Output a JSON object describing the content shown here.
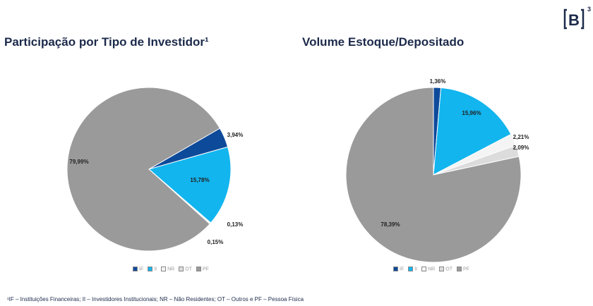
{
  "logo_text": "B3",
  "footnote": "¹IF – Instituições Financeiras; II – Investidores Institucionais; NR – Não Residentes; OT – Outros e PF – Pessoa Física",
  "chart_data": [
    {
      "type": "pie",
      "title": "Participação por Tipo de Investidor¹",
      "categories": [
        "IF",
        "II",
        "NR",
        "OT",
        "PF"
      ],
      "values": [
        3.94,
        15.78,
        0.13,
        0.15,
        79.99
      ],
      "labels": [
        "3,94%",
        "15,78%",
        "0,13%",
        "0,15%",
        "79,99%"
      ],
      "colors": [
        "#0d4a9a",
        "#12b5ee",
        "#f4f4f4",
        "#dcdcdc",
        "#9a9a9a"
      ],
      "legend": "bottom"
    },
    {
      "type": "pie",
      "title": "Volume Estoque/Depositado",
      "categories": [
        "IF",
        "II",
        "NR",
        "OT",
        "PF"
      ],
      "values": [
        1.36,
        15.96,
        2.21,
        2.09,
        78.39
      ],
      "labels": [
        "1,36%",
        "15,96%",
        "2,21%",
        "2,09%",
        "78,39%"
      ],
      "colors": [
        "#0d4a9a",
        "#12b5ee",
        "#f4f4f4",
        "#dcdcdc",
        "#9a9a9a"
      ],
      "legend": "bottom"
    }
  ]
}
